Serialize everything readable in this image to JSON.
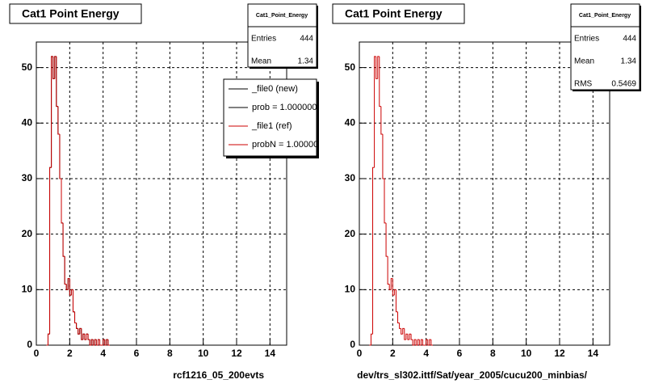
{
  "chart_data": [
    {
      "type": "histogram",
      "title": "Cat1 Point Energy",
      "xlabel": "rcf1216_05_200evts",
      "bins": [
        0.6,
        0.7,
        0.8,
        0.9,
        1.0,
        1.1,
        1.2,
        1.3,
        1.4,
        1.5,
        1.6,
        1.7,
        1.8,
        1.9,
        2.0,
        2.1,
        2.2,
        2.3,
        2.4,
        2.5,
        2.6,
        2.7,
        2.8,
        2.9,
        3.0,
        3.1,
        3.2,
        3.3,
        3.4,
        3.5,
        3.6,
        3.7,
        3.8,
        3.9,
        4.0,
        4.1,
        4.2,
        4.3,
        4.4
      ],
      "series": [
        {
          "name": "_file0 (new)",
          "color": "#000000",
          "values": [
            0,
            2,
            32,
            52,
            48,
            52,
            43,
            38,
            30,
            22,
            16,
            11,
            10,
            12,
            9,
            10,
            6,
            4,
            3,
            2,
            3,
            1,
            2,
            1,
            2,
            1,
            0,
            1,
            0,
            1,
            0,
            1,
            0,
            0,
            1,
            0,
            1,
            0
          ]
        },
        {
          "name": "_file1 (ref)",
          "color": "#cc0000",
          "values": [
            0,
            2,
            32,
            52,
            48,
            52,
            43,
            38,
            30,
            22,
            16,
            11,
            10,
            12,
            9,
            10,
            6,
            4,
            3,
            2,
            3,
            1,
            2,
            1,
            2,
            1,
            0,
            1,
            0,
            1,
            0,
            1,
            0,
            0,
            1,
            0,
            1,
            0
          ]
        }
      ],
      "legend_notes": [
        {
          "text": "prob = 1.000000",
          "color": "#000000"
        },
        {
          "text": "probN = 1.00000",
          "color": "#cc0000"
        }
      ],
      "stats": {
        "name": "Cat1_Point_Energy",
        "rows": [
          {
            "label": "Entries",
            "value": 444
          },
          {
            "label": "Mean",
            "value": 1.34
          }
        ]
      },
      "xlim": [
        0,
        15
      ],
      "ylim": [
        0,
        54.6
      ],
      "xticks": [
        0,
        2,
        4,
        6,
        8,
        10,
        12,
        14
      ],
      "yticks": [
        0,
        10,
        20,
        30,
        40,
        50
      ],
      "grid": true
    },
    {
      "type": "histogram",
      "title": "Cat1 Point Energy",
      "xlabel": "dev/trs_sl302.ittf/Sat/year_2005/cucu200_minbias/",
      "bins": [
        0.6,
        0.7,
        0.8,
        0.9,
        1.0,
        1.1,
        1.2,
        1.3,
        1.4,
        1.5,
        1.6,
        1.7,
        1.8,
        1.9,
        2.0,
        2.1,
        2.2,
        2.3,
        2.4,
        2.5,
        2.6,
        2.7,
        2.8,
        2.9,
        3.0,
        3.1,
        3.2,
        3.3,
        3.4,
        3.5,
        3.6,
        3.7,
        3.8,
        3.9,
        4.0,
        4.1,
        4.2,
        4.3,
        4.4
      ],
      "series": [
        {
          "color": "#cc0000",
          "values": [
            0,
            2,
            32,
            52,
            48,
            52,
            43,
            38,
            30,
            22,
            16,
            11,
            10,
            12,
            9,
            10,
            6,
            4,
            3,
            2,
            3,
            1,
            2,
            1,
            2,
            1,
            0,
            1,
            0,
            1,
            0,
            1,
            0,
            0,
            1,
            0,
            1,
            0
          ]
        }
      ],
      "stats": {
        "name": "Cat1_Point_Energy",
        "rows": [
          {
            "label": "Entries",
            "value": 444
          },
          {
            "label": "Mean",
            "value": 1.34
          },
          {
            "label": "RMS",
            "value": 0.5469
          }
        ]
      },
      "xlim": [
        0,
        15
      ],
      "ylim": [
        0,
        54.6
      ],
      "xticks": [
        0,
        2,
        4,
        6,
        8,
        10,
        12,
        14
      ],
      "yticks": [
        0,
        10,
        20,
        30,
        40,
        50
      ],
      "grid": true
    }
  ]
}
